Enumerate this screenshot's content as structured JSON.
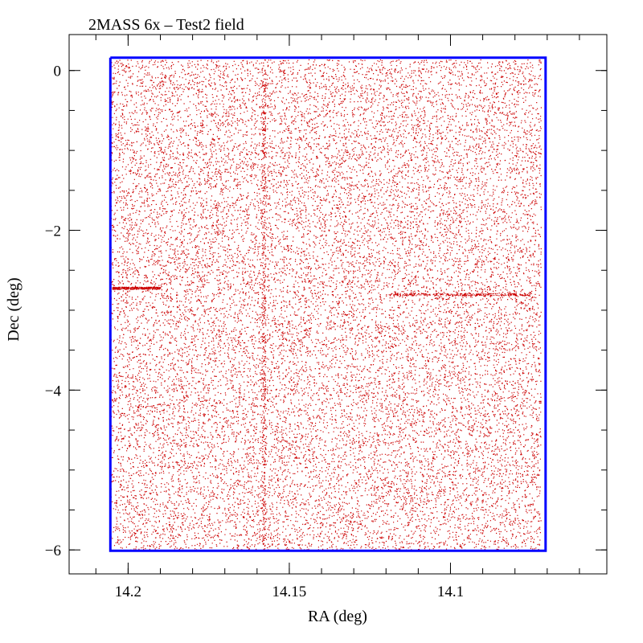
{
  "chart_data": {
    "type": "scatter",
    "title": "2MASS 6x – Test2 field",
    "xlabel": "RA (deg)",
    "ylabel": "Dec (deg)",
    "xlim": [
      14.2183,
      14.0515
    ],
    "ylim": [
      -6.3,
      0.45
    ],
    "x_major_ticks": [
      14.2,
      14.15,
      14.1
    ],
    "x_tick_labels": [
      "14.2",
      "14.15",
      "14.1"
    ],
    "x_minor_step": 0.01,
    "y_major_ticks": [
      0,
      -2,
      -4,
      -6
    ],
    "y_tick_labels": [
      "0",
      "−2",
      "−4",
      "−6"
    ],
    "y_minor_step": 0.5,
    "grid": false,
    "legend": "none",
    "colors": {
      "points": "#cc0000",
      "outline": "#0000ff",
      "axes": "#000000"
    },
    "series": [
      {
        "kind": "points",
        "ra_range": [
          14.072,
          14.2055
        ],
        "dec_range": [
          -6.0,
          0.14
        ],
        "approx_count": 20000,
        "note_features": [
          {
            "type": "horizontal-streak",
            "dec": -2.8,
            "ra_range": [
              14.075,
              14.12
            ]
          },
          {
            "type": "horizontal-streak",
            "dec": -2.72,
            "ra_range": [
              14.19,
              14.205
            ]
          },
          {
            "type": "vertical-streak",
            "ra": 14.158,
            "dec_range": [
              -6.0,
              0.14
            ]
          }
        ]
      },
      {
        "kind": "outline",
        "polygon": [
          [
            14.2055,
            0.16
          ],
          [
            14.0705,
            0.16
          ],
          [
            14.0705,
            -6.01
          ],
          [
            14.2055,
            -6.01
          ],
          [
            14.2055,
            0.16
          ]
        ]
      }
    ]
  }
}
